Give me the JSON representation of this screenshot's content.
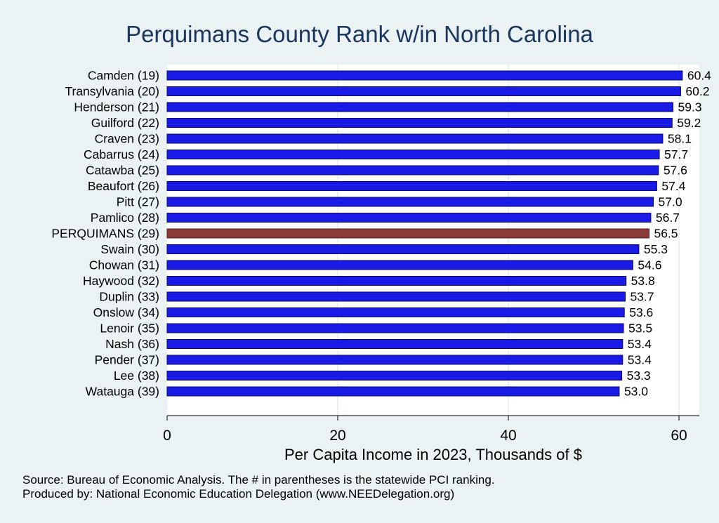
{
  "chart_data": {
    "type": "bar",
    "orientation": "horizontal",
    "title": "Perquimans County Rank w/in North Carolina",
    "xlabel": "Per Capita Income in 2023, Thousands of $",
    "xlim": [
      0,
      62.5
    ],
    "xticks": [
      0,
      20,
      40,
      60
    ],
    "grid": true,
    "categories": [
      "Camden (19)",
      "Transylvania (20)",
      "Henderson (21)",
      "Guilford (22)",
      "Craven (23)",
      "Cabarrus (24)",
      "Catawba (25)",
      "Beaufort (26)",
      "Pitt (27)",
      "Pamlico (28)",
      "PERQUIMANS (29)",
      "Swain (30)",
      "Chowan (31)",
      "Haywood (32)",
      "Duplin (33)",
      "Onslow (34)",
      "Lenoir (35)",
      "Nash (36)",
      "Pender (37)",
      "Lee (38)",
      "Watauga (39)"
    ],
    "values": [
      60.4,
      60.2,
      59.3,
      59.2,
      58.1,
      57.7,
      57.6,
      57.4,
      57.0,
      56.7,
      56.5,
      55.3,
      54.6,
      53.8,
      53.7,
      53.6,
      53.5,
      53.4,
      53.4,
      53.3,
      53.0
    ],
    "value_labels": [
      "60.4",
      "60.2",
      "59.3",
      "59.2",
      "58.1",
      "57.7",
      "57.6",
      "57.4",
      "57.0",
      "56.7",
      "56.5",
      "55.3",
      "54.6",
      "53.8",
      "53.7",
      "53.6",
      "53.5",
      "53.4",
      "53.4",
      "53.3",
      "53.0"
    ],
    "highlight_category": "PERQUIMANS (29)",
    "colors": {
      "bar": "#1a1ae6",
      "bar_edge": "#0a0a66",
      "highlight": "#8b3a3a",
      "highlight_edge": "#5a1f1f",
      "plot_bg": "#ffffff",
      "page_bg": "#eaf2f3",
      "title": "#1a3560",
      "grid": "#eaf2f3"
    }
  },
  "notes": {
    "source": "Source: Bureau of Economic Analysis. The # in parentheses is the statewide PCI ranking.",
    "produced_by": "Produced by: National Economic Education Delegation (www.NEEDelegation.org)"
  }
}
